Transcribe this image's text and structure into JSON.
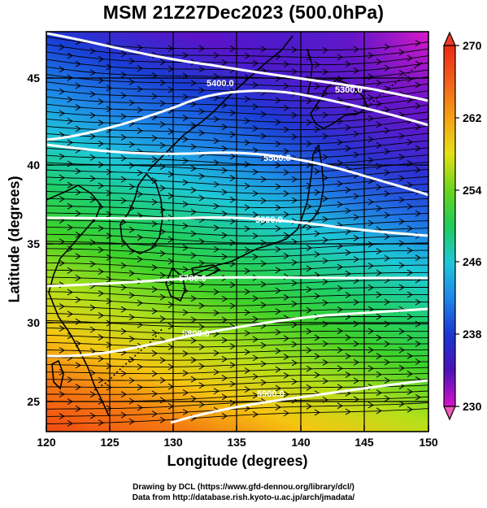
{
  "title": "MSM 21Z27Dec2023 (500.0hPa)",
  "xlabel": "Longitude (degrees)",
  "ylabel": "Latitude  (degrees)",
  "credits": [
    "Drawing by DCL (https://www.gfd-dennou.org/library/dcl/)",
    "Data from http://database.rish.kyoto-u.ac.jp/arch/jmadata/"
  ],
  "map_extent": {
    "lon": [
      120,
      150
    ],
    "lat": [
      22.5,
      48
    ]
  },
  "x_ticks": [
    "120",
    "125",
    "130",
    "135",
    "140",
    "145",
    "150"
  ],
  "y_ticks": [
    "25",
    "30",
    "35",
    "40",
    "45"
  ],
  "colorbar": {
    "min": 230,
    "max": 270,
    "labels": [
      "270",
      "262",
      "254",
      "246",
      "238",
      "230"
    ]
  },
  "contours": [
    {
      "label": "5300.0",
      "value": 5300
    },
    {
      "label": "5400.0",
      "value": 5400
    },
    {
      "label": "5500.0",
      "value": 5500
    },
    {
      "label": "5600.0",
      "value": 5600
    },
    {
      "label": "5700.0",
      "value": 5700
    },
    {
      "label": "5800.0",
      "value": 5800
    },
    {
      "label": "5900.0",
      "value": 5900
    }
  ],
  "colors": {
    "warm": "#e8501a",
    "mid": "#22c830",
    "cool": "#1a3fd8",
    "cold": "#c21ad8"
  }
}
